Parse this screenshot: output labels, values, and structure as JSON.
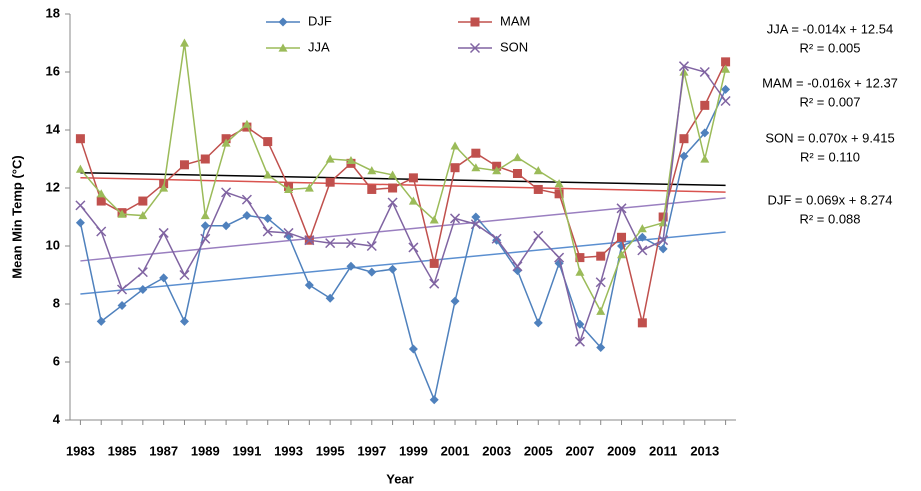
{
  "chart_data": {
    "type": "line",
    "x_label": "Year",
    "y_label": "Mean Min Temp (°C)",
    "x": [
      1983,
      1984,
      1985,
      1986,
      1987,
      1988,
      1989,
      1990,
      1991,
      1992,
      1993,
      1994,
      1995,
      1996,
      1997,
      1998,
      1999,
      2000,
      2001,
      2002,
      2003,
      2004,
      2005,
      2006,
      2007,
      2008,
      2009,
      2010,
      2011,
      2012,
      2013,
      2014
    ],
    "xlim": [
      1982.5,
      2014.5
    ],
    "xticks": [
      1983,
      1985,
      1987,
      1989,
      1991,
      1993,
      1995,
      1997,
      1999,
      2001,
      2003,
      2005,
      2007,
      2009,
      2011,
      2013
    ],
    "ylim": [
      4,
      18
    ],
    "yticks": [
      4,
      6,
      8,
      10,
      12,
      14,
      16,
      18
    ],
    "grid": false,
    "series": [
      {
        "name": "DJF",
        "color": "#4f81bd",
        "marker": "diamond",
        "values": [
          10.8,
          7.4,
          7.95,
          8.5,
          8.9,
          7.4,
          10.7,
          10.7,
          11.05,
          10.95,
          10.35,
          8.65,
          8.2,
          9.3,
          9.1,
          9.2,
          6.45,
          4.7,
          8.1,
          11.0,
          10.2,
          9.15,
          7.35,
          9.4,
          7.3,
          6.5,
          10.0,
          10.3,
          9.9,
          13.1,
          13.9,
          15.4
        ]
      },
      {
        "name": "MAM",
        "color": "#c0504d",
        "marker": "square",
        "values": [
          13.7,
          11.55,
          11.15,
          11.55,
          12.15,
          12.8,
          13.0,
          13.7,
          14.1,
          13.6,
          12.05,
          10.2,
          12.2,
          12.85,
          11.95,
          12.0,
          12.35,
          9.4,
          12.7,
          13.2,
          12.75,
          12.5,
          11.95,
          11.8,
          9.6,
          9.65,
          10.3,
          7.35,
          11.0,
          13.7,
          14.85,
          16.35
        ]
      },
      {
        "name": "JJA",
        "color": "#9bbb59",
        "marker": "triangle",
        "values": [
          12.65,
          11.8,
          11.1,
          11.05,
          12.0,
          17.0,
          11.05,
          13.55,
          14.2,
          12.45,
          11.95,
          12.0,
          13.0,
          12.95,
          12.6,
          12.45,
          11.55,
          10.9,
          13.45,
          12.7,
          12.6,
          13.05,
          12.6,
          12.15,
          9.1,
          7.75,
          9.7,
          10.6,
          10.8,
          16.0,
          13.0,
          16.1
        ]
      },
      {
        "name": "SON",
        "color": "#8064a2",
        "marker": "cross",
        "values": [
          11.4,
          10.5,
          8.5,
          9.1,
          10.45,
          9.0,
          10.25,
          11.85,
          11.6,
          10.5,
          10.45,
          10.2,
          10.1,
          10.1,
          10.0,
          11.5,
          9.95,
          8.7,
          10.95,
          10.75,
          10.25,
          9.3,
          10.35,
          9.6,
          6.7,
          8.75,
          11.3,
          9.85,
          10.2,
          16.2,
          16.0,
          15.0
        ]
      }
    ],
    "trendlines": [
      {
        "equation": "JJA = -0.014x + 12.54",
        "r2": "R² = 0.005",
        "slope": -0.014,
        "intercept": 12.54,
        "color": "#000000"
      },
      {
        "equation": "MAM = -0.016x + 12.37",
        "r2": "R² = 0.007",
        "slope": -0.016,
        "intercept": 12.37,
        "color": "#d9534f"
      },
      {
        "equation": "SON = 0.070x + 9.415",
        "r2": "R² = 0.110",
        "slope": 0.07,
        "intercept": 9.415,
        "color": "#9a7fc0"
      },
      {
        "equation": "DJF = 0.069x + 8.274",
        "r2": "R² = 0.088",
        "slope": 0.069,
        "intercept": 8.274,
        "color": "#5b8fd0"
      }
    ]
  }
}
